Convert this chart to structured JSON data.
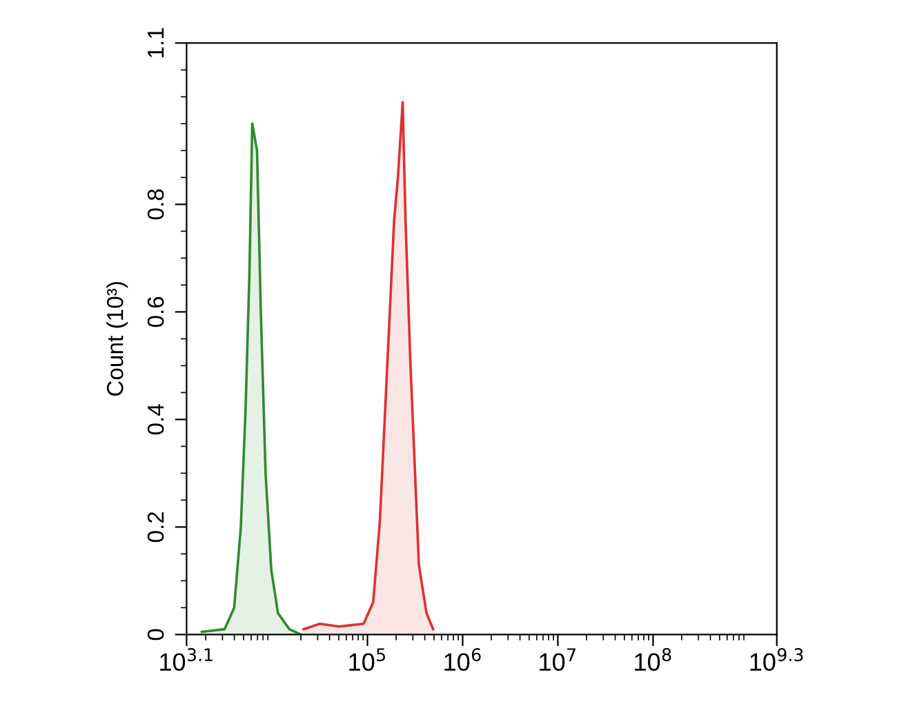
{
  "chart_data": {
    "type": "area",
    "ylabel": "Count (10³)",
    "log": "x",
    "grid": false,
    "xlim": [
      1258.9,
      1995262315
    ],
    "ylim": [
      0,
      1.1
    ],
    "xticks": [
      {
        "value": 1258.9,
        "label": "10$^{3.1}$"
      },
      {
        "value": 100000,
        "label": "10$^{5}$"
      },
      {
        "value": 1000000,
        "label": "10$^{6}$"
      },
      {
        "value": 10000000,
        "label": "10$^{7}$"
      },
      {
        "value": 100000000,
        "label": "10$^{8}$"
      },
      {
        "value": 1995262315,
        "label": "10$^{9.3}$"
      }
    ],
    "yticks": [
      0,
      0.2,
      0.4,
      0.6,
      0.8,
      1.1
    ],
    "series": [
      {
        "color": "#2e8b2e",
        "x": [
          1820,
          3162,
          3981,
          4677,
          5248,
          5754,
          6166,
          6457,
          6918,
          7586,
          8511,
          9772,
          11482,
          15136,
          19953
        ],
        "values": [
          0.005,
          0.01,
          0.05,
          0.2,
          0.42,
          0.67,
          0.95,
          0.93,
          0.9,
          0.6,
          0.3,
          0.12,
          0.04,
          0.01,
          0
        ]
      },
      {
        "color": "#e03030",
        "x": [
          21380,
          31623,
          50119,
          91201,
          114815,
          134896,
          158489,
          190546,
          208930,
          234423,
          251189,
          281838,
          316228,
          346737,
          416869,
          489779
        ],
        "values": [
          0.01,
          0.02,
          0.015,
          0.02,
          0.06,
          0.21,
          0.47,
          0.77,
          0.85,
          0.99,
          0.77,
          0.51,
          0.3,
          0.13,
          0.04,
          0.01
        ]
      }
    ]
  }
}
